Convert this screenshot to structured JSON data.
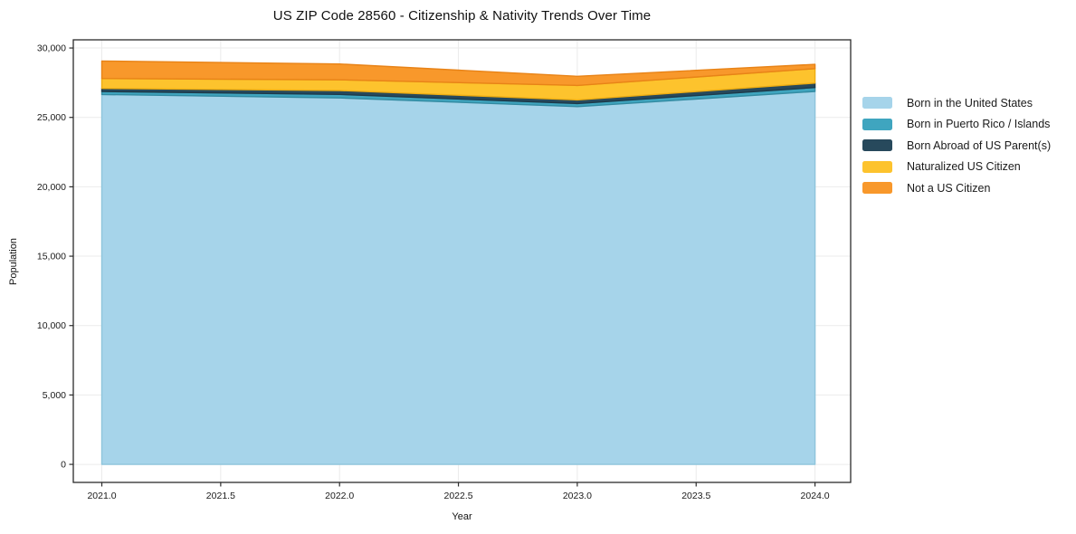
{
  "chart_data": {
    "type": "area",
    "stacked": true,
    "title": "US ZIP Code 28560 - Citizenship & Nativity Trends Over Time",
    "xlabel": "Year",
    "ylabel": "Population",
    "x": [
      2021,
      2022,
      2023,
      2024
    ],
    "series": [
      {
        "name": "Born in the United States",
        "color": "#a6d4ea",
        "edge": "#8ec5dc",
        "values": [
          26650,
          26400,
          25780,
          26870
        ]
      },
      {
        "name": "Born in Puerto Rico / Islands",
        "color": "#3fa5bf",
        "edge": "#338ba2",
        "values": [
          215,
          260,
          220,
          280
        ]
      },
      {
        "name": "Born Abroad of US Parent(s)",
        "color": "#27495c",
        "edge": "#1d3a4a",
        "values": [
          220,
          280,
          260,
          325
        ]
      },
      {
        "name": "Naturalized US Citizen",
        "color": "#fdc32d",
        "edge": "#eead12",
        "values": [
          720,
          765,
          1045,
          1040
        ]
      },
      {
        "name": "Not a US Citizen",
        "color": "#f8982b",
        "edge": "#e88317",
        "values": [
          1260,
          1145,
          655,
          310
        ]
      }
    ],
    "x_ticks": [
      2021.0,
      2021.5,
      2022.0,
      2022.5,
      2023.0,
      2023.5,
      2024.0
    ],
    "x_tick_labels": [
      "2021.0",
      "2021.5",
      "2022.0",
      "2022.5",
      "2023.0",
      "2023.5",
      "2024.0"
    ],
    "y_ticks": [
      0,
      5000,
      10000,
      15000,
      20000,
      25000,
      30000
    ],
    "y_tick_labels": [
      "0",
      "5,000",
      "10,000",
      "15,000",
      "20,000",
      "25,000",
      "30,000"
    ],
    "xlim": [
      2020.88,
      2024.15
    ],
    "ylim": [
      -1300,
      30590
    ],
    "grid": true,
    "grid_color": "#ebebeb",
    "frame_color": "#2b2b2b",
    "legend_position": "right"
  }
}
